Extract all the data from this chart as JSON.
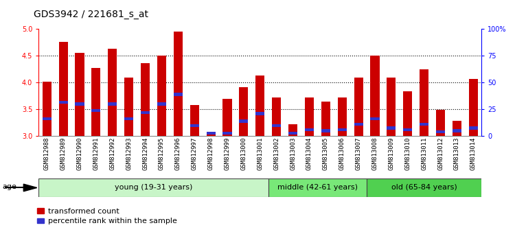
{
  "title": "GDS3942 / 221681_s_at",
  "samples": [
    "GSM812988",
    "GSM812989",
    "GSM812990",
    "GSM812991",
    "GSM812992",
    "GSM812993",
    "GSM812994",
    "GSM812995",
    "GSM812996",
    "GSM812997",
    "GSM812998",
    "GSM812999",
    "GSM813000",
    "GSM813001",
    "GSM813002",
    "GSM813003",
    "GSM813004",
    "GSM813005",
    "GSM813006",
    "GSM813007",
    "GSM813008",
    "GSM813009",
    "GSM813010",
    "GSM813011",
    "GSM813012",
    "GSM813013",
    "GSM813014"
  ],
  "transformed_count": [
    4.02,
    4.76,
    4.56,
    4.28,
    4.63,
    4.1,
    4.36,
    4.5,
    4.96,
    3.58,
    3.07,
    3.7,
    3.92,
    4.13,
    3.72,
    3.22,
    3.72,
    3.65,
    3.72,
    4.1,
    4.51,
    4.1,
    3.84,
    4.25,
    3.49,
    3.28,
    4.07
  ],
  "percentile_rank": [
    3.32,
    3.63,
    3.6,
    3.48,
    3.6,
    3.32,
    3.44,
    3.6,
    3.78,
    3.2,
    3.05,
    3.05,
    3.28,
    3.42,
    3.2,
    3.05,
    3.12,
    3.1,
    3.12,
    3.22,
    3.32,
    3.15,
    3.12,
    3.22,
    3.08,
    3.1,
    3.15
  ],
  "groups": [
    {
      "label": "young (19-31 years)",
      "start": 0,
      "end": 14,
      "color": "#c8f5c8"
    },
    {
      "label": "middle (42-61 years)",
      "start": 14,
      "end": 20,
      "color": "#78e878"
    },
    {
      "label": "old (65-84 years)",
      "start": 20,
      "end": 27,
      "color": "#50d050"
    }
  ],
  "bar_color": "#cc0000",
  "blue_color": "#3333cc",
  "ymin": 3.0,
  "ymax": 5.0,
  "y2min": 0,
  "y2max": 100,
  "yticks": [
    3.0,
    3.5,
    4.0,
    4.5,
    5.0
  ],
  "y2ticks": [
    0,
    25,
    50,
    75,
    100
  ],
  "y2ticklabels": [
    "0",
    "25",
    "50",
    "75",
    "100%"
  ],
  "legend_labels": [
    "transformed count",
    "percentile rank within the sample"
  ],
  "age_label": "age",
  "background_color": "#ffffff",
  "plot_bg_color": "#ffffff",
  "title_fontsize": 10,
  "tick_fontsize": 7,
  "label_fontsize": 8
}
